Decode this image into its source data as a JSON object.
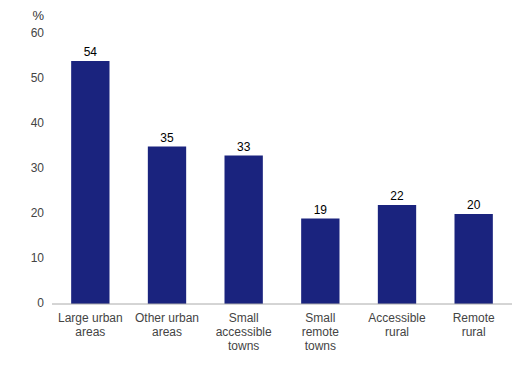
{
  "chart_data": {
    "type": "bar",
    "categories": [
      "Large urban\nareas",
      "Other urban\nareas",
      "Small\naccessible\ntowns",
      "Small\nremote\ntowns",
      "Accessible\nrural",
      "Remote\nrural"
    ],
    "values": [
      54,
      35,
      33,
      19,
      22,
      20
    ],
    "color": "#1a237e",
    "y_label": "%",
    "ylim": [
      0,
      60
    ],
    "yticks": [
      0,
      10,
      20,
      30,
      40,
      50,
      60
    ],
    "grid": false,
    "data_labels": true
  }
}
